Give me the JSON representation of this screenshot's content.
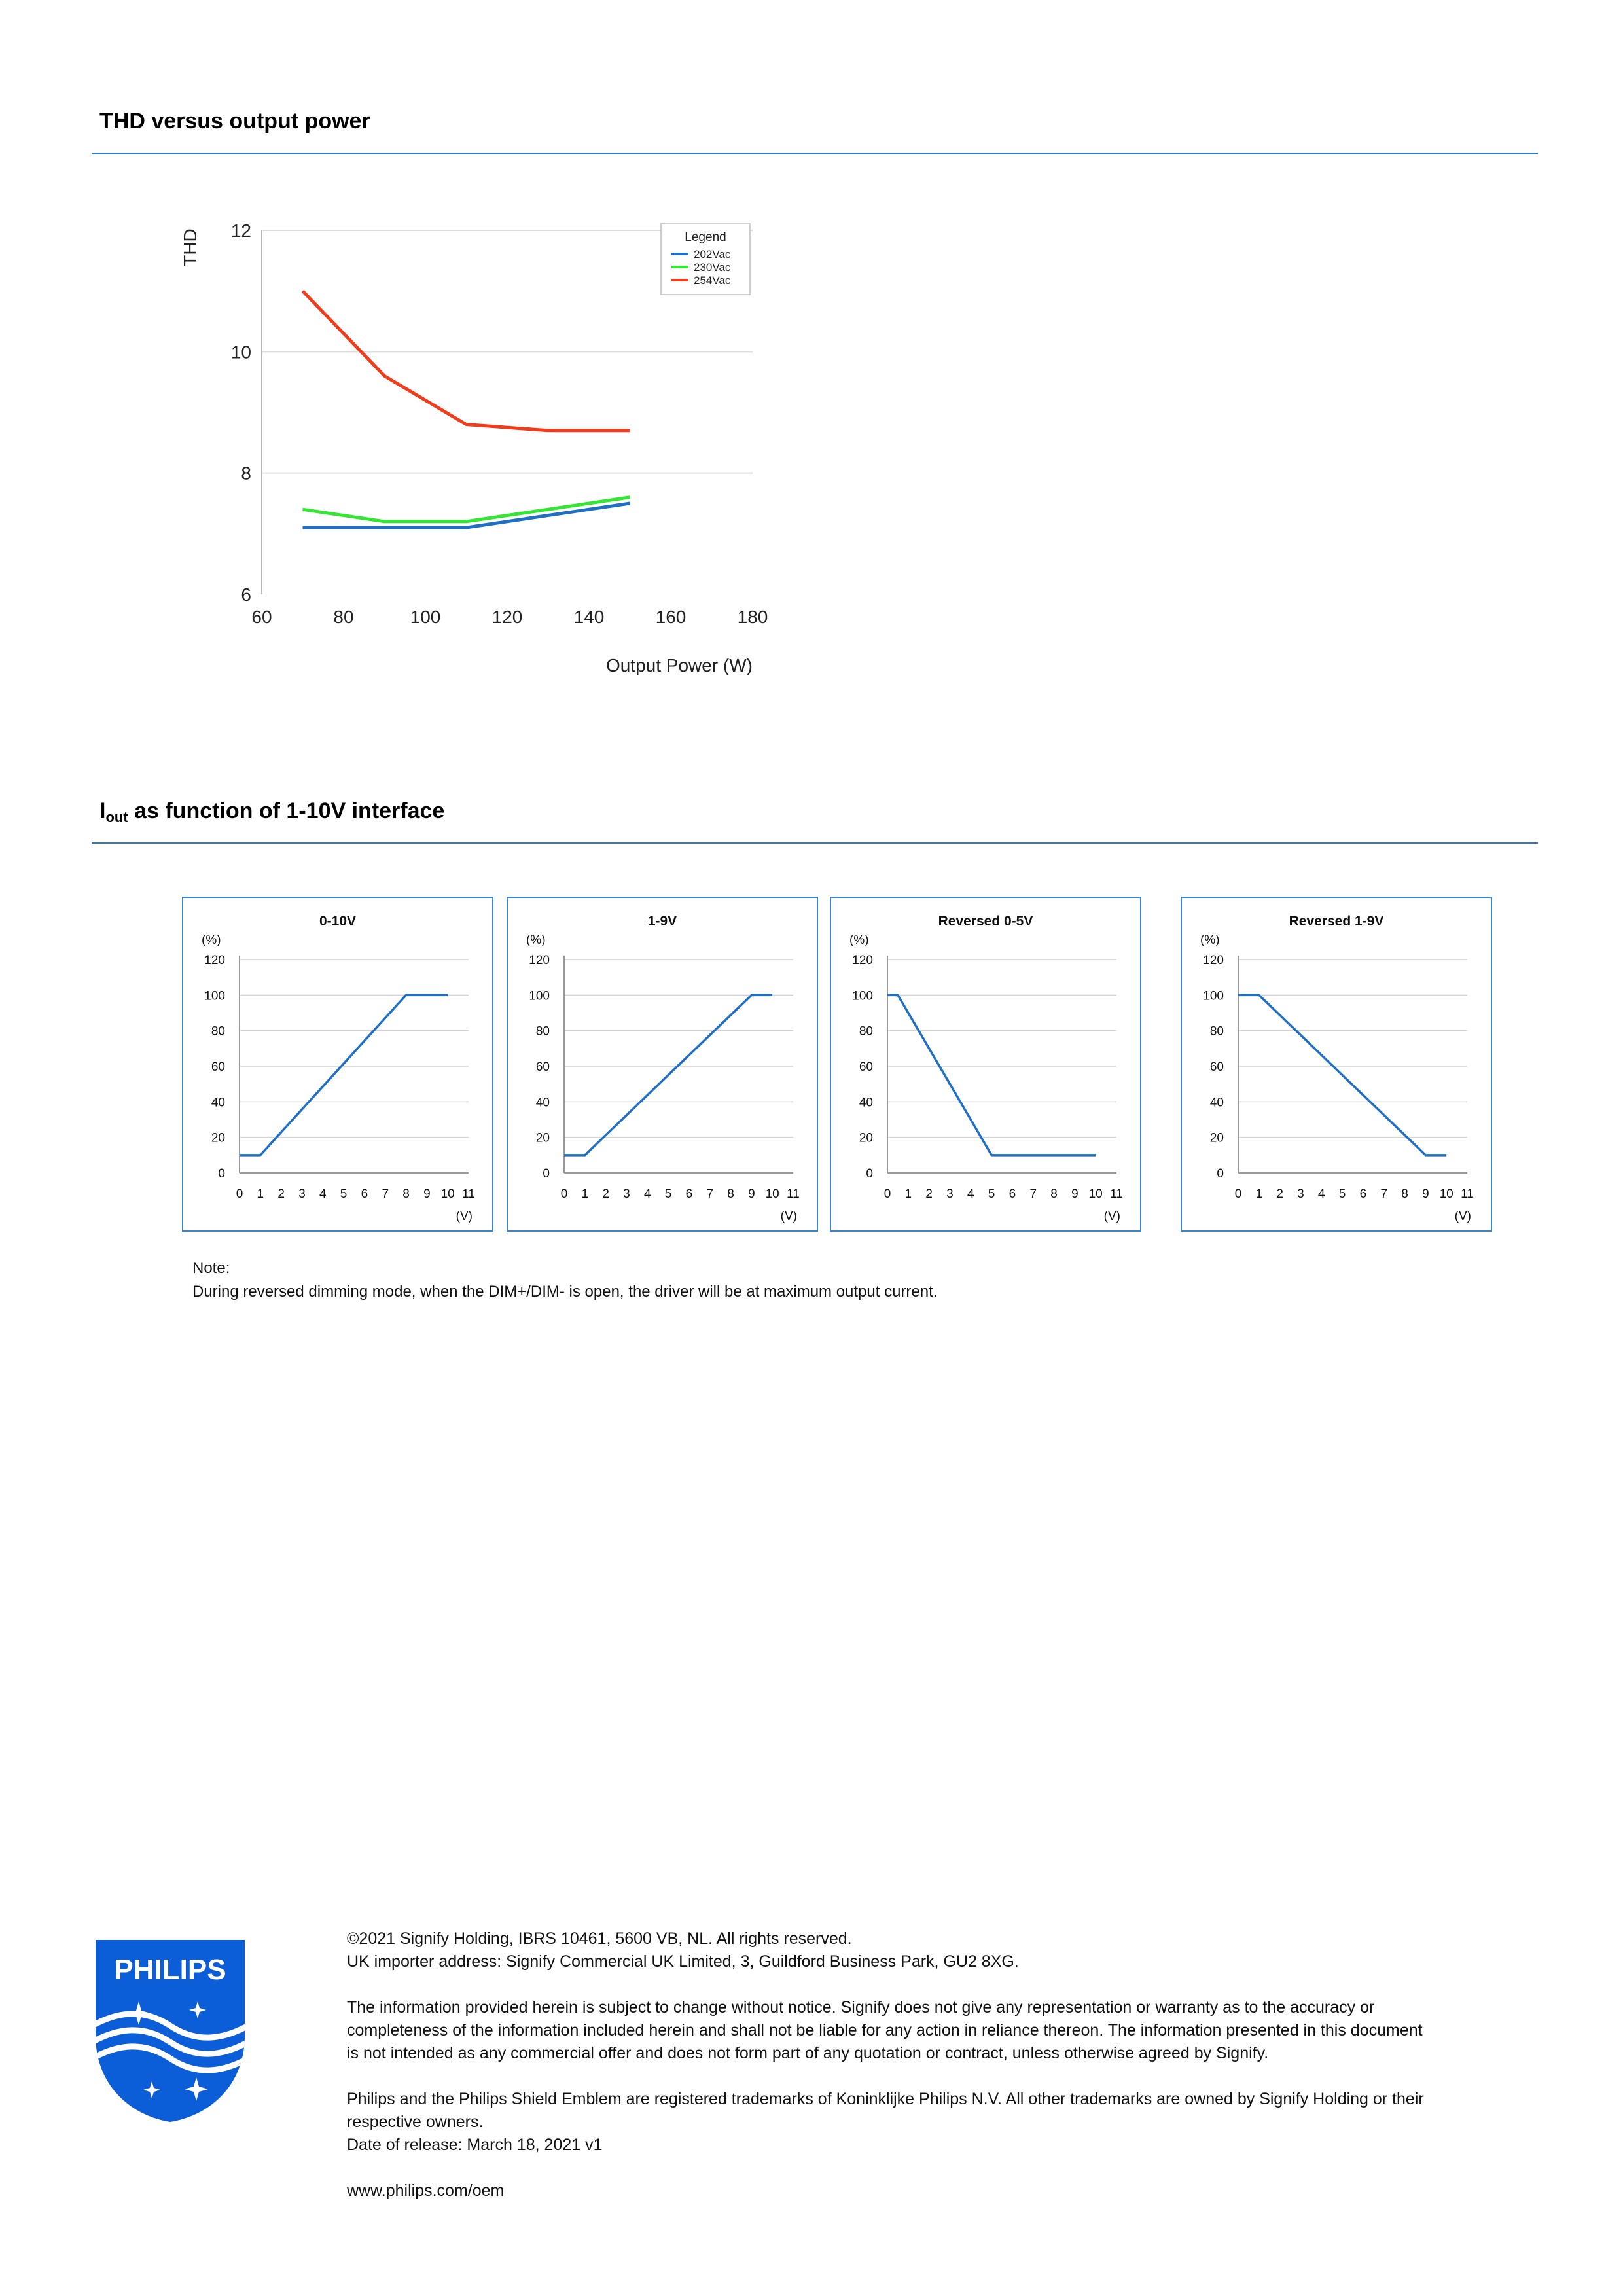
{
  "sections": {
    "thd_title": "THD versus output power",
    "iout_title_main": "I",
    "iout_title_sub": "out",
    "iout_title_rest": " as function of 1-10V interface"
  },
  "chart_data": [
    {
      "type": "line",
      "title": "",
      "ylabel": "THD",
      "xlabel": "Output Power (W)",
      "xlim": [
        60,
        180
      ],
      "ylim": [
        6,
        12
      ],
      "xticks": [
        60,
        80,
        100,
        120,
        140,
        160,
        180
      ],
      "yticks": [
        6,
        8,
        10,
        12
      ],
      "grid": true,
      "legend_title": "Legend",
      "legend_position": "top-right",
      "series": [
        {
          "name": "202Vac",
          "color": "#1f6fc5",
          "x": [
            70,
            90,
            110,
            130,
            150
          ],
          "y": [
            7.1,
            7.1,
            7.1,
            7.3,
            7.5
          ]
        },
        {
          "name": "230Vac",
          "color": "#33e633",
          "x": [
            70,
            90,
            110,
            130,
            150
          ],
          "y": [
            7.4,
            7.2,
            7.2,
            7.4,
            7.6
          ]
        },
        {
          "name": "254Vac",
          "color": "#f03c1a",
          "x": [
            70,
            90,
            110,
            130,
            150
          ],
          "y": [
            11.0,
            9.6,
            8.8,
            8.7,
            8.7
          ]
        }
      ]
    },
    {
      "type": "line",
      "title": "0-10V",
      "ylabel": "(%)",
      "xlabel": "(V)",
      "xlim": [
        0,
        11
      ],
      "ylim": [
        0,
        120
      ],
      "grid": true,
      "color": "#1f6fc5",
      "x": [
        0,
        1,
        8,
        10
      ],
      "y": [
        10,
        10,
        100,
        100
      ]
    },
    {
      "type": "line",
      "title": "1-9V",
      "ylabel": "(%)",
      "xlabel": "(V)",
      "xlim": [
        0,
        11
      ],
      "ylim": [
        0,
        120
      ],
      "grid": true,
      "color": "#1f6fc5",
      "x": [
        0,
        1,
        9,
        10
      ],
      "y": [
        10,
        10,
        100,
        100
      ]
    },
    {
      "type": "line",
      "title": "Reversed 0-5V",
      "ylabel": "(%)",
      "xlabel": "(V)",
      "xlim": [
        0,
        11
      ],
      "ylim": [
        0,
        120
      ],
      "grid": true,
      "color": "#1f6fc5",
      "x": [
        0,
        0.5,
        5,
        10
      ],
      "y": [
        100,
        100,
        10,
        10
      ]
    },
    {
      "type": "line",
      "title": "Reversed 1-9V",
      "ylabel": "(%)",
      "xlabel": "(V)",
      "xlim": [
        0,
        11
      ],
      "ylim": [
        0,
        120
      ],
      "grid": true,
      "color": "#1f6fc5",
      "x": [
        0,
        1,
        9,
        10
      ],
      "y": [
        100,
        100,
        10,
        10
      ]
    }
  ],
  "note": {
    "label": "Note:",
    "text": "During reversed dimming mode, when the DIM+/DIM- is open, the driver will be at maximum output current."
  },
  "footer": {
    "logo_text": "PHILIPS",
    "copyright": "©2021 Signify Holding, IBRS 10461, 5600 VB, NL. All rights reserved.",
    "importer": "UK importer address: Signify Commercial UK Limited, 3, Guildford Business Park, GU2 8XG.",
    "disclaimer_1": "The information provided herein is subject to change without notice. Signify does not give any representation or warranty as to the accuracy or",
    "disclaimer_2": "completeness of the information included herein and shall not be liable for any action in reliance thereon. The information presented in this document",
    "disclaimer_3": "is not intended as any commercial offer and does not form part of any quotation or contract, unless otherwise agreed by Signify.",
    "trademark_1": "Philips and the Philips Shield Emblem are registered trademarks of Koninklijke Philips N.V. All other trademarks are owned by Signify Holding or their",
    "trademark_2": "respective owners.",
    "release": "Date of release: March 18, 2021 v1",
    "url": "www.philips.com/oem",
    "brand_color": "#0b5ed7"
  }
}
